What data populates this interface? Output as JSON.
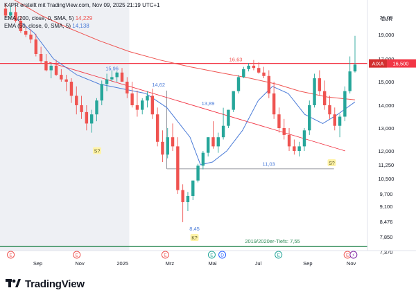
{
  "header": {
    "attribution": "K4PR erstellt mit TradingView.com, Nov 09, 2025 21:19 UTC+1",
    "ema200_label": "EMA (200, close, 0, SMA, 5)",
    "ema200_value": "14,229",
    "ema50_label": "EMA (50, close, 0, SMA, 5)",
    "ema50_value": "14,138"
  },
  "brand": {
    "name": "TradingView",
    "icon": "tradingview-logo-icon"
  },
  "colors": {
    "ema200": "#ef5350",
    "ema50": "#4a7bd8",
    "up": "#26a69a",
    "down": "#ef5350",
    "resistance": "#f23645",
    "trendline": "#f23645",
    "support": "#2e8b57",
    "shade": "#eef0f4"
  },
  "chart_data": {
    "type": "candlestick",
    "currency": "EUR",
    "y_ticks": [
      "21,00",
      "19,000",
      "17,000",
      "15,000",
      "14,000",
      "13,000",
      "12,000",
      "11,250",
      "10,500",
      "9,700",
      "9,100",
      "8,476",
      "7,850",
      "7,370"
    ],
    "x_labels": [
      "Sep",
      "Nov",
      "2025",
      "Mrz",
      "Mai",
      "Jul",
      "Sep",
      "Nov"
    ],
    "last_price": {
      "symbol": "AIXA",
      "value": "16,500"
    },
    "price_labels": [
      {
        "text": "16,63",
        "x": "2025-06-01",
        "y": 16.8
      },
      {
        "text": "15,96",
        "x": "2024-12-18",
        "y": 16.0
      },
      {
        "text": "14,62",
        "x": "2025-02-18",
        "y": 14.8
      },
      {
        "text": "13,89",
        "x": "2025-04-25",
        "y": 14.0
      },
      {
        "text": "11,03",
        "x": "2025-07-15",
        "y": 11.2
      },
      {
        "text": "8,45",
        "x": "2025-04-07",
        "y": 7.9
      },
      {
        "text": "2019/2020er-Tiefs: 7,55",
        "x": "2025-07-20",
        "y": 7.65
      }
    ],
    "markers": [
      {
        "text": "S?",
        "x": "2024-11-28",
        "y": 11.9
      },
      {
        "text": "S?",
        "x": "2025-10-07",
        "y": 11.25
      },
      {
        "text": "K?",
        "x": "2025-04-07",
        "y": 7.75
      }
    ],
    "levels": {
      "resistance": 16.6,
      "support_2019_2020": 7.55,
      "box_low": 11.03,
      "box_high": 14.62
    },
    "trendline": {
      "from": [
        "2024-09-25",
        16.7
      ],
      "to": [
        "2025-10-25",
        12.0
      ]
    },
    "series": [
      {
        "name": "EMA (200, close, 0, SMA, 5)",
        "x": [
          "2024-08-10",
          "2024-09-15",
          "2024-10-20",
          "2024-12-01",
          "2025-01-10",
          "2025-02-20",
          "2025-04-01",
          "2025-05-10",
          "2025-06-20",
          "2025-07-25",
          "2025-08-25",
          "2025-10-01",
          "2025-11-07"
        ],
        "values": [
          23.0,
          21.2,
          19.8,
          18.5,
          17.6,
          16.9,
          16.3,
          15.8,
          15.3,
          14.9,
          14.6,
          14.35,
          14.23
        ]
      },
      {
        "name": "EMA (50, close, 0, SMA, 5)",
        "x": [
          "2024-08-10",
          "2024-09-05",
          "2024-10-01",
          "2024-11-01",
          "2024-12-01",
          "2025-01-01",
          "2025-02-01",
          "2025-03-01",
          "2025-04-01",
          "2025-04-15",
          "2025-05-01",
          "2025-05-20",
          "2025-06-10",
          "2025-07-01",
          "2025-07-20",
          "2025-08-10",
          "2025-09-01",
          "2025-09-25",
          "2025-10-15",
          "2025-11-07"
        ],
        "values": [
          21.0,
          19.2,
          17.0,
          15.6,
          14.9,
          14.7,
          14.5,
          13.9,
          12.6,
          11.25,
          11.4,
          12.0,
          12.9,
          14.2,
          14.8,
          14.5,
          13.6,
          13.2,
          13.6,
          14.14
        ]
      }
    ],
    "ohlc": {
      "dates_from": "2024-07-29",
      "dates_to": "2025-11-07",
      "interval": "weekly-ish",
      "open": [
        22.0,
        21.2,
        21.6,
        20.6,
        19.4,
        19.0,
        18.6,
        17.4,
        16.8,
        16.0,
        16.4,
        15.6,
        15.2,
        15.0,
        14.4,
        14.0,
        13.7,
        13.2,
        13.6,
        14.2,
        14.9,
        15.2,
        15.4,
        15.8,
        15.0,
        14.5,
        14.0,
        13.8,
        14.2,
        14.4,
        13.6,
        12.4,
        11.8,
        12.6,
        12.2,
        9.9,
        9.3,
        9.6,
        10.4,
        11.2,
        11.9,
        12.6,
        12.2,
        12.6,
        13.1,
        13.8,
        14.6,
        15.4,
        16.1,
        16.4,
        16.2,
        15.8,
        15.5,
        14.5,
        13.6,
        13.0,
        12.7,
        12.2,
        12.0,
        12.2,
        12.9,
        14.0,
        15.3,
        14.6,
        14.0,
        13.6,
        13.1,
        13.5,
        14.6,
        15.9
      ],
      "high": [
        22.6,
        22.3,
        22.2,
        21.1,
        20.0,
        19.6,
        19.1,
        18.0,
        17.4,
        16.6,
        16.9,
        16.1,
        15.6,
        15.3,
        14.8,
        14.4,
        14.0,
        13.8,
        14.3,
        15.1,
        15.7,
        15.96,
        15.9,
        16.2,
        15.4,
        15.0,
        14.62,
        14.3,
        14.6,
        14.7,
        13.9,
        12.9,
        13.0,
        13.2,
        12.6,
        10.2,
        9.8,
        10.4,
        11.3,
        12.0,
        12.6,
        13.3,
        12.8,
        13.89,
        13.8,
        14.6,
        15.6,
        16.3,
        16.63,
        16.9,
        16.7,
        16.3,
        16.0,
        15.0,
        13.9,
        13.4,
        13.0,
        12.5,
        12.4,
        13.0,
        14.2,
        15.7,
        16.0,
        15.1,
        14.4,
        13.9,
        13.6,
        14.8,
        17.2,
        18.9
      ],
      "low": [
        21.0,
        20.8,
        20.4,
        19.2,
        18.8,
        18.3,
        17.2,
        16.6,
        15.9,
        15.3,
        15.5,
        15.0,
        14.6,
        14.1,
        13.6,
        13.4,
        12.9,
        12.8,
        13.3,
        14.0,
        14.6,
        15.0,
        15.0,
        15.0,
        14.3,
        13.9,
        13.5,
        13.6,
        13.9,
        13.4,
        12.2,
        11.4,
        11.6,
        12.0,
        9.7,
        8.45,
        8.9,
        9.4,
        10.3,
        11.0,
        11.7,
        12.1,
        11.9,
        12.5,
        13.0,
        13.7,
        14.5,
        15.3,
        15.9,
        16.0,
        15.7,
        15.3,
        14.3,
        13.4,
        12.8,
        12.5,
        12.0,
        11.8,
        11.7,
        12.0,
        12.7,
        13.9,
        14.4,
        13.8,
        13.4,
        12.9,
        12.6,
        13.3,
        14.5,
        15.8
      ],
      "close": [
        21.2,
        21.6,
        20.6,
        19.4,
        19.0,
        18.6,
        17.4,
        16.8,
        16.0,
        16.4,
        15.6,
        15.2,
        15.0,
        14.4,
        14.0,
        13.7,
        13.2,
        13.6,
        14.2,
        14.9,
        15.2,
        15.4,
        15.8,
        15.0,
        14.5,
        14.0,
        13.8,
        14.2,
        14.4,
        13.6,
        12.4,
        11.8,
        12.6,
        12.2,
        9.9,
        9.3,
        9.6,
        10.4,
        11.2,
        11.9,
        12.6,
        12.2,
        12.6,
        13.1,
        13.8,
        14.6,
        15.4,
        16.1,
        16.4,
        16.2,
        15.8,
        15.5,
        14.5,
        13.6,
        13.0,
        12.7,
        12.2,
        12.0,
        12.2,
        12.9,
        14.0,
        15.3,
        14.6,
        14.0,
        13.6,
        13.1,
        13.5,
        14.6,
        15.9,
        16.5
      ]
    }
  }
}
